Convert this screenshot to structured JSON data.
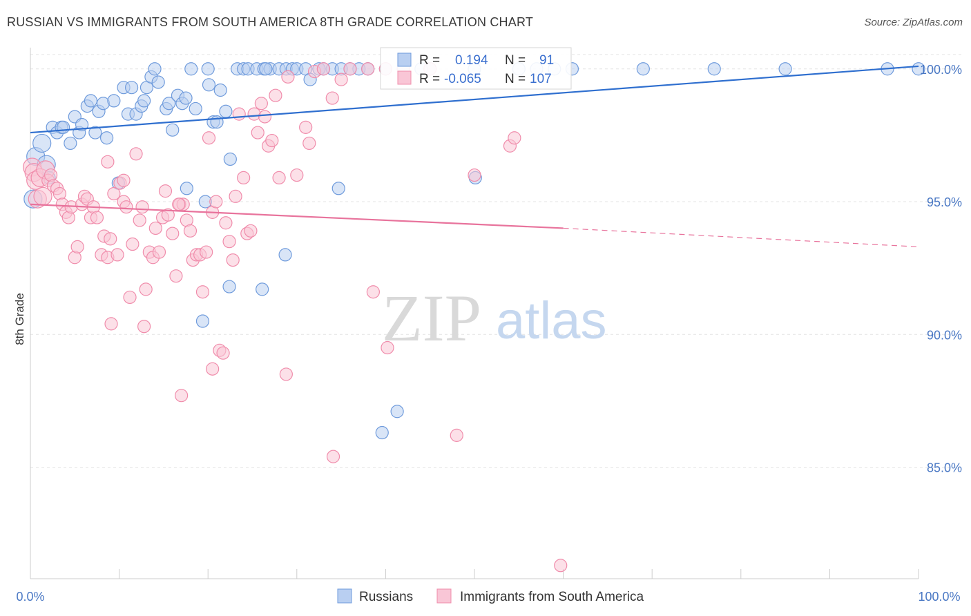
{
  "title": "RUSSIAN VS IMMIGRANTS FROM SOUTH AMERICA 8TH GRADE CORRELATION CHART",
  "source": "Source: ZipAtlas.com",
  "watermark": {
    "zip": "ZIP",
    "atlas": "atlas"
  },
  "stats_box": {
    "r_label": "R =",
    "n_label": "N =",
    "rows": [
      {
        "r": "0.194",
        "n": "91",
        "color": "#6f9bdc"
      },
      {
        "r": "-0.065",
        "n": "107",
        "color": "#f08cab"
      }
    ]
  },
  "legend": [
    {
      "label": "Russians",
      "color": "#6f9bdc"
    },
    {
      "label": "Immigrants from South America",
      "color": "#f08cab"
    }
  ],
  "chart_data": {
    "type": "scatter",
    "title": "RUSSIAN VS IMMIGRANTS FROM SOUTH AMERICA 8TH GRADE CORRELATION CHART",
    "xlabel": "",
    "ylabel": "8th Grade",
    "xlim": [
      0,
      100
    ],
    "ylim": [
      80.8,
      100.8
    ],
    "x_tick_labels": [
      "0.0%",
      "100.0%"
    ],
    "y_ticks": [
      85,
      90,
      95,
      100
    ],
    "y_tick_labels": [
      "85.0%",
      "90.0%",
      "95.0%",
      "100.0%"
    ],
    "grid": true,
    "legend_position": "bottom",
    "series": [
      {
        "name": "Russians",
        "color": "#6f9bdc",
        "R": 0.194,
        "N": 91,
        "trend": {
          "x": [
            0,
            100
          ],
          "y": [
            97.6,
            100.1
          ]
        },
        "points": [
          [
            0.3,
            95.1
          ],
          [
            0.6,
            96.7
          ],
          [
            1.3,
            97.2
          ],
          [
            1.8,
            96.4
          ],
          [
            2.1,
            95.9
          ],
          [
            2.5,
            97.8
          ],
          [
            3.0,
            97.6
          ],
          [
            3.5,
            97.8
          ],
          [
            3.7,
            97.8
          ],
          [
            4.5,
            97.2
          ],
          [
            5.0,
            98.2
          ],
          [
            5.5,
            97.6
          ],
          [
            5.8,
            97.9
          ],
          [
            6.4,
            98.6
          ],
          [
            6.8,
            98.8
          ],
          [
            7.3,
            97.6
          ],
          [
            7.7,
            98.4
          ],
          [
            8.2,
            98.7
          ],
          [
            8.6,
            97.4
          ],
          [
            9.4,
            98.8
          ],
          [
            10.5,
            99.3
          ],
          [
            11.0,
            98.3
          ],
          [
            11.4,
            99.3
          ],
          [
            11.9,
            98.3
          ],
          [
            12.5,
            98.6
          ],
          [
            12.8,
            98.8
          ],
          [
            13.1,
            99.3
          ],
          [
            13.6,
            99.7
          ],
          [
            14.0,
            100.0
          ],
          [
            14.4,
            99.5
          ],
          [
            15.3,
            98.5
          ],
          [
            15.6,
            98.7
          ],
          [
            16.0,
            97.7
          ],
          [
            16.6,
            99.0
          ],
          [
            17.1,
            98.7
          ],
          [
            17.5,
            98.9
          ],
          [
            18.1,
            100.0
          ],
          [
            18.6,
            98.5
          ],
          [
            20.1,
            99.4
          ],
          [
            20.6,
            98.0
          ],
          [
            21.0,
            98.0
          ],
          [
            21.4,
            99.2
          ],
          [
            22.0,
            98.4
          ],
          [
            22.5,
            96.6
          ],
          [
            23.3,
            100.0
          ],
          [
            24.0,
            100.0
          ],
          [
            24.5,
            100.0
          ],
          [
            25.5,
            100.0
          ],
          [
            26.3,
            100.0
          ],
          [
            27.0,
            100.0
          ],
          [
            28.0,
            100.0
          ],
          [
            28.8,
            100.0
          ],
          [
            29.5,
            100.0
          ],
          [
            30.0,
            100.0
          ],
          [
            31.0,
            100.0
          ],
          [
            31.5,
            99.6
          ],
          [
            32.5,
            100.0
          ],
          [
            34.0,
            100.0
          ],
          [
            35.0,
            100.0
          ],
          [
            37.0,
            100.0
          ],
          [
            38.0,
            100.0
          ],
          [
            40.0,
            100.0
          ],
          [
            42.0,
            100.0
          ],
          [
            45.0,
            100.0
          ],
          [
            50.0,
            100.0
          ],
          [
            55.0,
            100.0
          ],
          [
            57.0,
            100.0
          ],
          [
            59.0,
            100.0
          ],
          [
            61.0,
            100.0
          ],
          [
            69.0,
            100.0
          ],
          [
            77.0,
            100.0
          ],
          [
            85.0,
            100.0
          ],
          [
            96.5,
            100.0
          ],
          [
            100.0,
            100.0
          ],
          [
            9.9,
            95.7
          ],
          [
            17.6,
            95.5
          ],
          [
            19.7,
            95.0
          ],
          [
            34.7,
            95.5
          ],
          [
            50.1,
            95.9
          ],
          [
            28.7,
            93.0
          ],
          [
            22.4,
            91.8
          ],
          [
            26.1,
            91.7
          ],
          [
            19.4,
            90.5
          ],
          [
            39.6,
            86.3
          ],
          [
            41.3,
            87.1
          ],
          [
            26.5,
            100.0
          ],
          [
            20.0,
            100.0
          ],
          [
            33.0,
            100.0
          ],
          [
            36.0,
            100.0
          ],
          [
            44.0,
            100.0
          ]
        ]
      },
      {
        "name": "Immigrants from South America",
        "color": "#f08cab",
        "R": -0.065,
        "N": 107,
        "trend": {
          "x": [
            0,
            60
          ],
          "y": [
            94.9,
            94.0
          ]
        },
        "trend_dashed": {
          "x": [
            60,
            100
          ],
          "y": [
            94.0,
            93.3
          ]
        },
        "points": [
          [
            0.2,
            96.3
          ],
          [
            0.4,
            96.1
          ],
          [
            0.6,
            95.8
          ],
          [
            0.8,
            95.1
          ],
          [
            1.1,
            95.9
          ],
          [
            1.4,
            95.2
          ],
          [
            1.7,
            96.2
          ],
          [
            2.0,
            95.8
          ],
          [
            2.3,
            96.0
          ],
          [
            2.6,
            95.6
          ],
          [
            3.0,
            95.5
          ],
          [
            3.3,
            95.3
          ],
          [
            3.6,
            94.9
          ],
          [
            4.0,
            94.6
          ],
          [
            4.3,
            94.4
          ],
          [
            4.6,
            94.8
          ],
          [
            5.0,
            92.9
          ],
          [
            5.3,
            93.3
          ],
          [
            5.8,
            94.9
          ],
          [
            6.1,
            95.2
          ],
          [
            6.4,
            95.1
          ],
          [
            6.8,
            94.4
          ],
          [
            7.1,
            94.8
          ],
          [
            7.5,
            94.4
          ],
          [
            8.0,
            93.0
          ],
          [
            8.3,
            93.7
          ],
          [
            8.7,
            92.9
          ],
          [
            9.0,
            93.6
          ],
          [
            9.4,
            95.3
          ],
          [
            9.8,
            93.0
          ],
          [
            10.1,
            95.7
          ],
          [
            10.5,
            95.0
          ],
          [
            10.8,
            94.8
          ],
          [
            11.2,
            91.4
          ],
          [
            11.5,
            93.4
          ],
          [
            11.9,
            96.8
          ],
          [
            12.3,
            94.3
          ],
          [
            12.6,
            94.8
          ],
          [
            13.0,
            91.7
          ],
          [
            13.4,
            93.1
          ],
          [
            13.8,
            92.9
          ],
          [
            14.1,
            94.0
          ],
          [
            14.5,
            93.1
          ],
          [
            14.9,
            94.4
          ],
          [
            15.2,
            95.4
          ],
          [
            15.5,
            94.5
          ],
          [
            16.0,
            93.8
          ],
          [
            16.4,
            92.2
          ],
          [
            16.8,
            94.9
          ],
          [
            17.2,
            94.9
          ],
          [
            17.6,
            94.3
          ],
          [
            18.0,
            93.9
          ],
          [
            18.3,
            92.8
          ],
          [
            18.7,
            93.0
          ],
          [
            19.1,
            93.0
          ],
          [
            19.4,
            91.6
          ],
          [
            19.8,
            93.1
          ],
          [
            20.1,
            97.4
          ],
          [
            20.5,
            94.6
          ],
          [
            20.9,
            95.0
          ],
          [
            21.3,
            89.4
          ],
          [
            21.7,
            89.3
          ],
          [
            22.0,
            94.2
          ],
          [
            22.4,
            93.5
          ],
          [
            22.8,
            92.8
          ],
          [
            23.1,
            95.2
          ],
          [
            23.5,
            98.3
          ],
          [
            24.0,
            95.9
          ],
          [
            24.4,
            93.8
          ],
          [
            24.8,
            93.9
          ],
          [
            25.2,
            98.3
          ],
          [
            25.6,
            97.6
          ],
          [
            26.0,
            98.7
          ],
          [
            26.4,
            98.2
          ],
          [
            26.8,
            97.1
          ],
          [
            27.2,
            97.3
          ],
          [
            27.6,
            99.0
          ],
          [
            28.0,
            95.9
          ],
          [
            29.0,
            99.7
          ],
          [
            30.0,
            96.0
          ],
          [
            31.0,
            97.8
          ],
          [
            31.4,
            97.2
          ],
          [
            32.0,
            99.9
          ],
          [
            33.0,
            100.0
          ],
          [
            34.0,
            98.9
          ],
          [
            35.0,
            99.6
          ],
          [
            36.0,
            100.0
          ],
          [
            38.0,
            100.0
          ],
          [
            40.0,
            100.0
          ],
          [
            42.0,
            100.0
          ],
          [
            45.0,
            100.0
          ],
          [
            50.0,
            96.0
          ],
          [
            54.0,
            97.1
          ],
          [
            54.5,
            97.4
          ],
          [
            12.8,
            90.3
          ],
          [
            9.1,
            90.4
          ],
          [
            17.0,
            87.7
          ],
          [
            20.5,
            88.7
          ],
          [
            28.8,
            88.5
          ],
          [
            34.1,
            85.4
          ],
          [
            38.6,
            91.6
          ],
          [
            40.2,
            89.5
          ],
          [
            48.0,
            86.2
          ],
          [
            59.7,
            81.3
          ],
          [
            8.7,
            96.5
          ],
          [
            10.5,
            95.8
          ],
          [
            16.7,
            94.9
          ]
        ]
      }
    ]
  }
}
